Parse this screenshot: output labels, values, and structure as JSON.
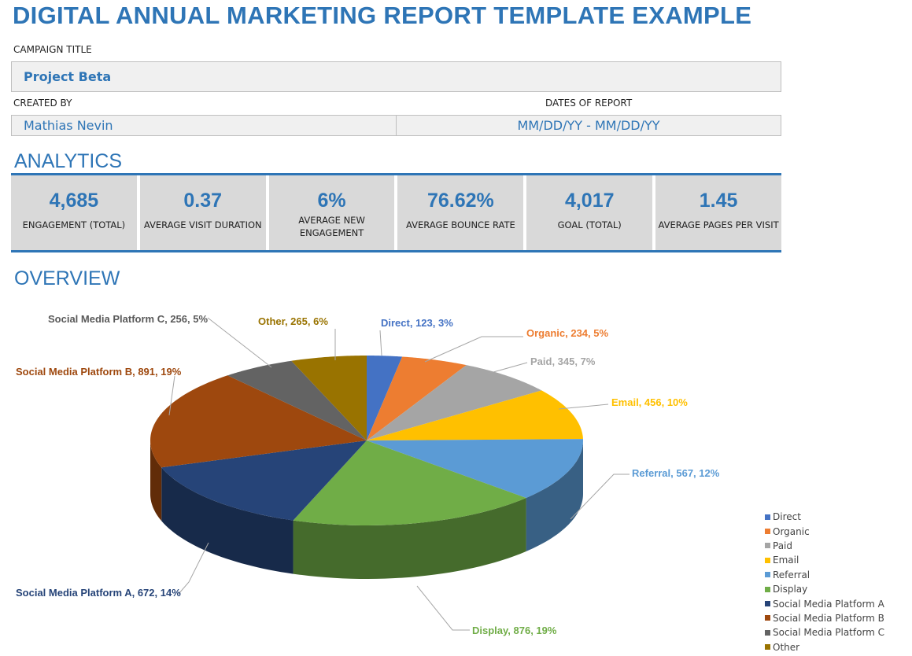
{
  "title": "DIGITAL ANNUAL MARKETING REPORT TEMPLATE EXAMPLE",
  "campaign": {
    "label": "CAMPAIGN TITLE",
    "value": "Project Beta"
  },
  "created_by": {
    "label": "CREATED BY",
    "value": "Mathias Nevin"
  },
  "dates": {
    "label": "DATES OF REPORT",
    "value": "MM/DD/YY - MM/DD/YY"
  },
  "analytics": {
    "heading": "ANALYTICS",
    "kpis": [
      {
        "value": "4,685",
        "label": "ENGAGEMENT (TOTAL)"
      },
      {
        "value": "0.37",
        "label": "AVERAGE VISIT DURATION"
      },
      {
        "value": "6%",
        "label": "AVERAGE NEW ENGAGEMENT"
      },
      {
        "value": "76.62%",
        "label": "AVERAGE BOUNCE RATE"
      },
      {
        "value": "4,017",
        "label": "GOAL (TOTAL)"
      },
      {
        "value": "1.45",
        "label": "AVERAGE PAGES PER VISIT"
      }
    ]
  },
  "overview": {
    "heading": "OVERVIEW"
  },
  "chart_data": {
    "type": "pie",
    "style": "3d",
    "legend": "right",
    "categories": [
      "Direct",
      "Organic",
      "Paid",
      "Email",
      "Referral",
      "Display",
      "Social Media Platform A",
      "Social Media Platform B",
      "Social Media Platform C",
      "Other"
    ],
    "values": [
      123,
      234,
      345,
      456,
      567,
      876,
      672,
      891,
      256,
      265
    ],
    "data_labels": [
      "Direct, 123, 3%",
      "Organic, 234, 5%",
      "Paid, 345, 7%",
      "Email, 456, 10%",
      "Referral, 567, 12%",
      "Display, 876, 19%",
      "Social Media Platform A, 672, 14%",
      "Social Media Platform B, 891, 19%",
      "Social Media Platform C, 256, 5%",
      "Other, 265, 6%"
    ],
    "colors": [
      "#4472c4",
      "#ed7d31",
      "#a5a5a5",
      "#ffc000",
      "#5b9bd5",
      "#70ad47",
      "#264478",
      "#9e480e",
      "#636363",
      "#997300"
    ]
  }
}
